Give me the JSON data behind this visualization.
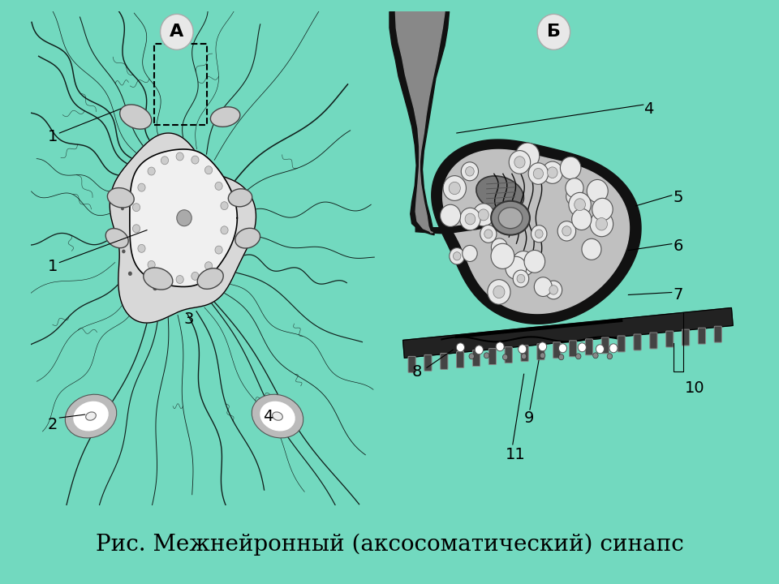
{
  "background_color": "#72d9bf",
  "panel_bg": "#ffffff",
  "title_text": "Рис. Межнейронный (аксосоматический) синапс",
  "title_fontsize": 20,
  "label_A": "А",
  "label_B": "Б",
  "teal_color": "#72d9bf",
  "caption_bg": "#e0f5ee",
  "caption_border": "#3a9070"
}
